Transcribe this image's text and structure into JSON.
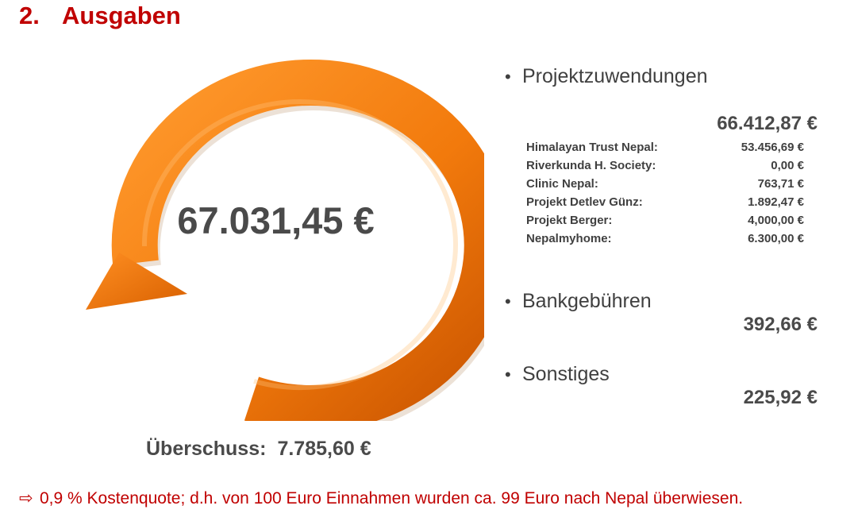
{
  "heading": {
    "number": "2.",
    "text": "Ausgaben"
  },
  "total": "67.031,45 €",
  "surplus": {
    "label": "Überschuss:",
    "value": "7.785,60 €"
  },
  "sections": [
    {
      "title": "Projektzuwendungen",
      "amount": "66.412,87 €",
      "items": [
        {
          "label": "Himalayan Trust Nepal:",
          "value": "53.456,69 €"
        },
        {
          "label": "Riverkunda H. Society:",
          "value": "0,00 €"
        },
        {
          "label": "Clinic Nepal:",
          "value": "763,71 €"
        },
        {
          "label": "Projekt Detlev Günz:",
          "value": "1.892,47 €"
        },
        {
          "label": "Projekt Berger:",
          "value": "4,000,00 €"
        },
        {
          "label": "Nepalmyhome:",
          "value": "6.300,00 €"
        }
      ]
    },
    {
      "title": "Bankgebühren",
      "amount": "392,66 €"
    },
    {
      "title": "Sonstiges",
      "amount": "225,92 €"
    }
  ],
  "bullet_symbol": "•",
  "note": {
    "arrow": "⇨",
    "text": "0,9 % Kostenquote; d.h. von 100 Euro Einnahmen wurden ca. 99 Euro nach Nepal überwiesen."
  },
  "colors": {
    "heading": "#c00000",
    "ring_light": "#ff8a1e",
    "ring_dark": "#d95f00",
    "text": "#4a4a4a"
  },
  "icons": {
    "ring": "circular-arrow-icon"
  }
}
